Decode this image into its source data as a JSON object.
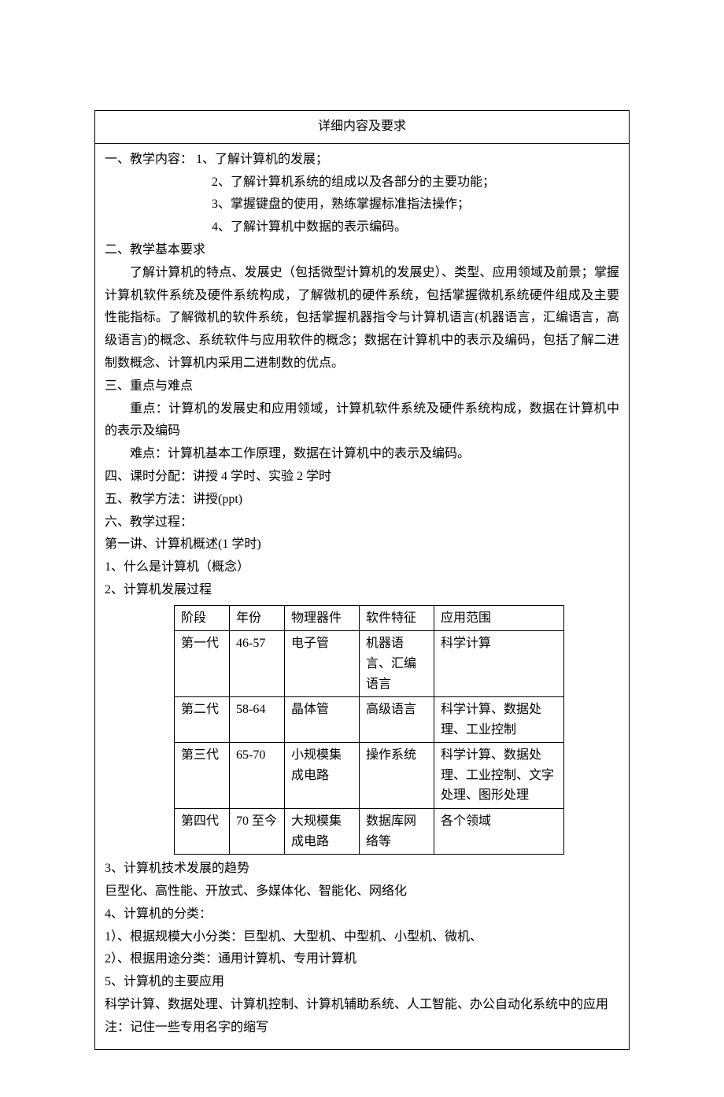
{
  "header": "详细内容及要求",
  "section1": {
    "title": "一、教学内容：",
    "items": [
      "1、了解计算机的发展；",
      "2、了解计算机系统的组成以及各部分的主要功能；",
      "3、掌握键盘的使用，熟练掌握标准指法操作；",
      "4、了解计算机中数据的表示编码。"
    ]
  },
  "section2": {
    "title": "二、教学基本要求",
    "body": "了解计算机的特点、发展史（包括微型计算机的发展史）、类型、应用领域及前景；掌握计算机软件系统及硬件系统构成，了解微机的硬件系统，包括掌握微机系统硬件组成及主要性能指标。了解微机的软件系统，包括掌握机器指令与计算机语言(机器语言，汇编语言，高级语言)的概念、系统软件与应用软件的概念；数据在计算机中的表示及编码，包括了解二进制数概念、计算机内采用二进制数的优点。"
  },
  "section3": {
    "title": "三、重点与难点",
    "focus_label": "重点：",
    "focus": "计算机的发展史和应用领域，计算机软件系统及硬件系统构成，数据在计算机中的表示及编码",
    "difficult_label": "难点：",
    "difficult": "计算机基本工作原理，数据在计算机中的表示及编码。"
  },
  "section4": "四、课时分配：讲授 4 学时、实验 2 学时",
  "section5": "五、教学方法：讲授(ppt)",
  "section6": "六、教学过程：",
  "lecture1": "第一讲、计算机概述(1 学时)",
  "point1": "1、什么是计算机（概念）",
  "point2": "2、计算机发展过程",
  "table": {
    "headers": [
      "阶段",
      "年份",
      "物理器件",
      "软件特征",
      "应用范围"
    ],
    "rows": [
      [
        "第一代",
        "46-57",
        "电子管",
        "机器语言、汇编语言",
        "科学计算"
      ],
      [
        "第二代",
        "58-64",
        "晶体管",
        "高级语言",
        "科学计算、数据处理、工业控制"
      ],
      [
        "第三代",
        "65-70",
        "小规模集成电路",
        "操作系统",
        "科学计算、数据处理、工业控制、文字处理、图形处理"
      ],
      [
        "第四代",
        "70 至今",
        "大规模集成电路",
        "数据库网络等",
        "各个领域"
      ]
    ]
  },
  "point3": "3、计算机技术发展的趋势",
  "point3_body": "巨型化、高性能、开放式、多媒体化、智能化、网络化",
  "point4": "4、计算机的分类：",
  "point4_sub1": "1）、根据规模大小分类：巨型机、大型机、中型机、小型机、微机、",
  "point4_sub2": "2）、根据用途分类：通用计算机、专用计算机",
  "point5": "5、计算机的主要应用",
  "point5_body": "科学计算、数据处理、计算机控制、计算机辅助系统、人工智能、办公自动化系统中的应用",
  "note": "注：记住一些专用名字的缩写"
}
